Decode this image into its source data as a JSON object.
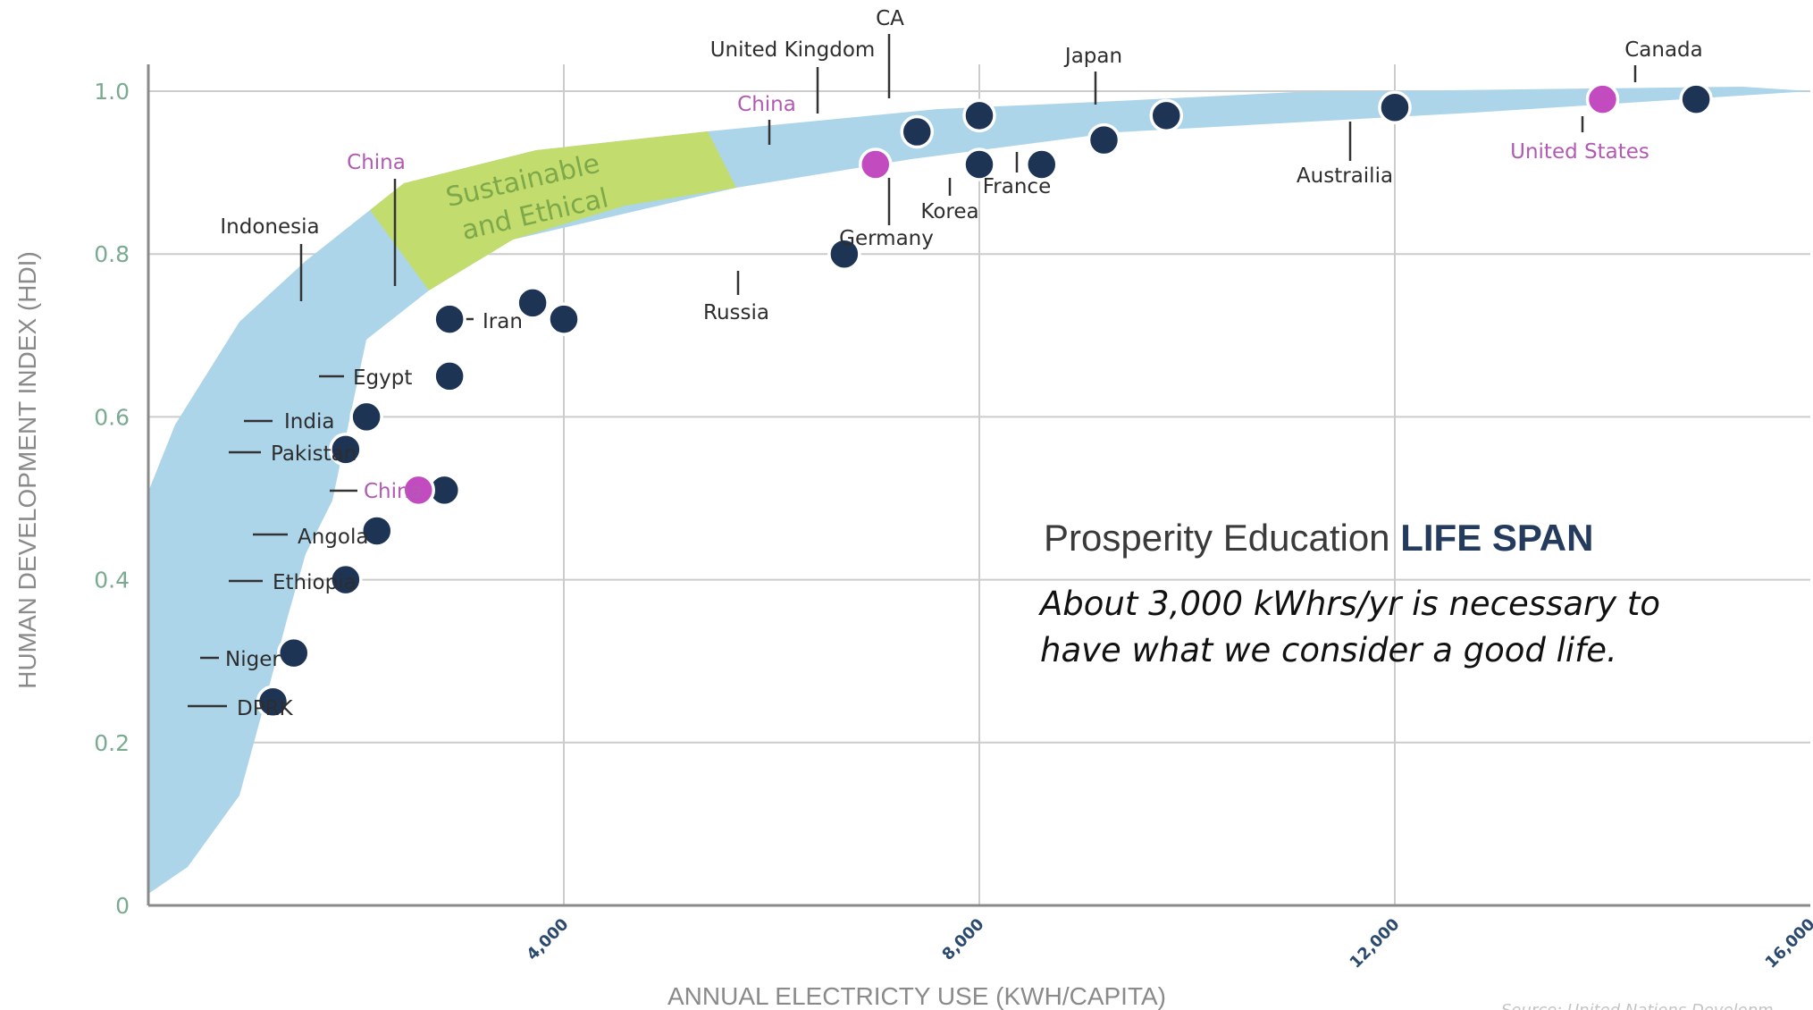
{
  "chart_data": {
    "type": "scatter",
    "xlabel": "ANNUAL ELECTRICTY USE (KWH/CAPITA)",
    "ylabel": "HUMAN DEVELOPMENT INDEX (HDI)",
    "xlim": [
      0,
      16000
    ],
    "ylim": [
      0,
      1.0
    ],
    "x_ticks": [
      {
        "value": 4000,
        "label": "4,000"
      },
      {
        "value": 8000,
        "label": "8,000"
      },
      {
        "value": 12000,
        "label": "12,000"
      },
      {
        "value": 16000,
        "label": "16,000"
      }
    ],
    "y_ticks": [
      {
        "value": 0,
        "label": "0"
      },
      {
        "value": 0.2,
        "label": "0.2"
      },
      {
        "value": 0.4,
        "label": "0.4"
      },
      {
        "value": 0.6,
        "label": "0.6"
      },
      {
        "value": 0.8,
        "label": "0.8"
      },
      {
        "value": 1.0,
        "label": "1.0"
      }
    ],
    "grid": true,
    "region_label": "Sustainable and Ethical",
    "points": [
      {
        "label": "Canada",
        "x": 14900,
        "y": 0.99
      },
      {
        "label": "United States",
        "x": 14000,
        "y": 0.99,
        "highlight": true
      },
      {
        "label": "Australia",
        "x": 12000,
        "y": 0.98
      },
      {
        "label": "Japan",
        "x": 9800,
        "y": 0.97
      },
      {
        "label": "France",
        "x": 9200,
        "y": 0.94
      },
      {
        "label": "Korea",
        "x": 8600,
        "y": 0.91
      },
      {
        "label": "CA",
        "x": 8000,
        "y": 0.97
      },
      {
        "label": "Germany",
        "x": 8000,
        "y": 0.91
      },
      {
        "label": "United Kingdom",
        "x": 7400,
        "y": 0.95
      },
      {
        "label": "China (2030)",
        "x": 7000,
        "y": 0.91,
        "highlight": true
      },
      {
        "label": "Russia",
        "x": 6700,
        "y": 0.8
      },
      {
        "label": "China (2010)",
        "x": 3700,
        "y": 0.74
      },
      {
        "label": "Iran",
        "x": 4000,
        "y": 0.72
      },
      {
        "label": "Indonesia",
        "x": 2900,
        "y": 0.72
      },
      {
        "label": "Egypt",
        "x": 2900,
        "y": 0.65
      },
      {
        "label": "India",
        "x": 2100,
        "y": 0.6
      },
      {
        "label": "Pakistan",
        "x": 1900,
        "y": 0.56
      },
      {
        "label": "China (1990)",
        "x": 2850,
        "y": 0.51
      },
      {
        "label": "China (1990, target)",
        "x": 2600,
        "y": 0.51,
        "highlight": true
      },
      {
        "label": "Angola",
        "x": 2200,
        "y": 0.46
      },
      {
        "label": "Ethiopia",
        "x": 1900,
        "y": 0.4
      },
      {
        "label": "Niger",
        "x": 1400,
        "y": 0.31
      },
      {
        "label": "DPRK",
        "x": 1200,
        "y": 0.25
      }
    ],
    "point_labels": {
      "canada": "Canada",
      "united_states": "United States",
      "australia": "Austrailia",
      "japan": "Japan",
      "france": "France",
      "korea": "Korea",
      "ca": "CA",
      "germany": "Germany",
      "united_kingdom": "United Kingdom",
      "china_top": "China",
      "russia": "Russia",
      "china_mid": "China",
      "iran": "Iran",
      "indonesia": "Indonesia",
      "egypt": "Egypt",
      "india": "India",
      "pakistan": "Pakistan",
      "china_low": "China",
      "angola": "Angola",
      "ethiopia": "Ethiopia",
      "niger": "Niger",
      "dprk": "DPRK"
    },
    "colors": {
      "band": "#add5ea",
      "sustainable": "#c2dc6e",
      "point": "#1d3455",
      "highlight": "#c24bbf",
      "grid": "#cccccc",
      "axis": "#8a8a8a"
    },
    "source": "Source: United Nations Developm"
  },
  "annotation": {
    "brand_regular": "Prosperity Education ",
    "brand_bold": "LIFE SPAN",
    "note": "About 3,000 kWhrs/yr is necessary to have what we consider a good life."
  }
}
